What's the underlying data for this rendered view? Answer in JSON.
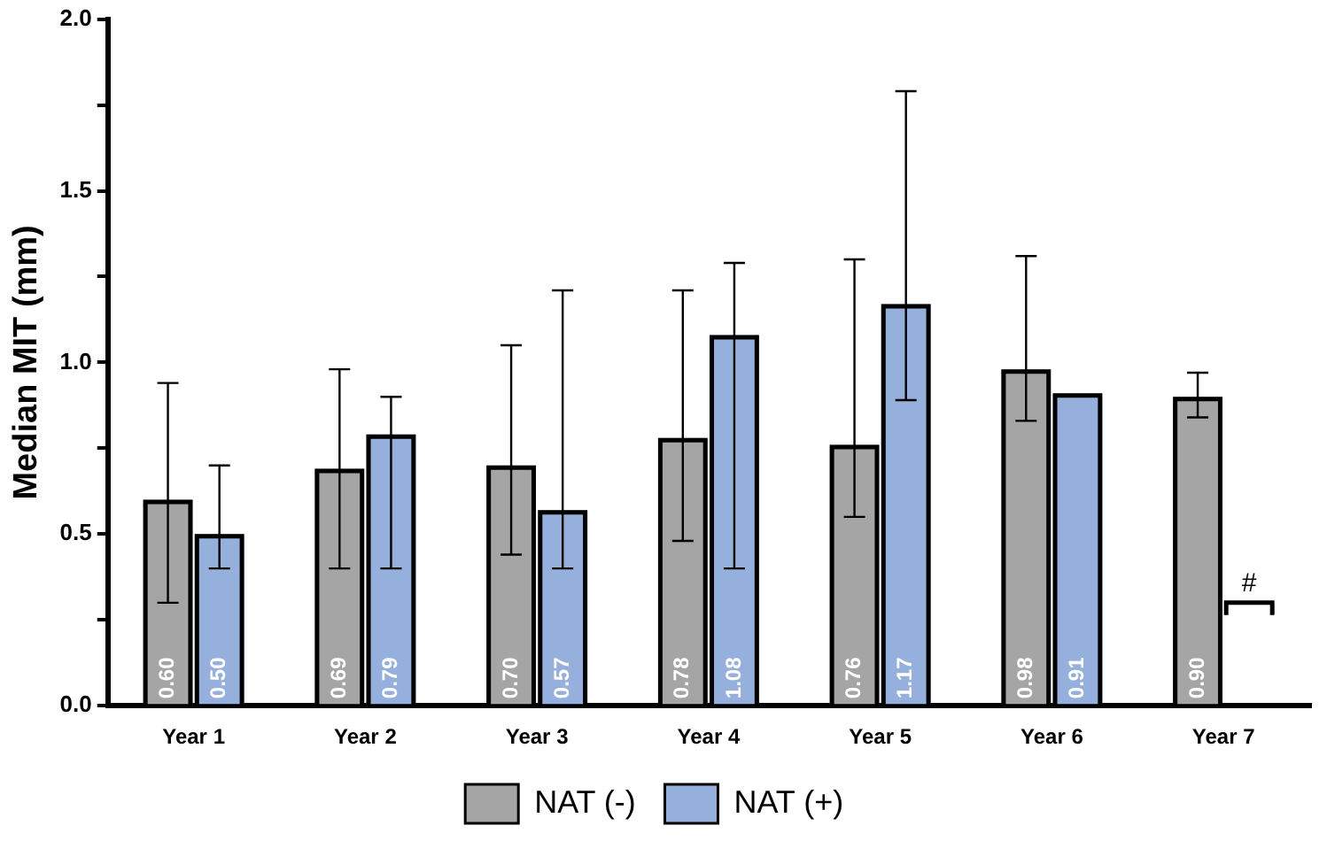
{
  "chart_data": {
    "type": "bar",
    "ylabel": "Median MIT (mm)",
    "categories": [
      "Year 1",
      "Year 2",
      "Year 3",
      "Year 4",
      "Year 5",
      "Year 6",
      "Year 7"
    ],
    "series": [
      {
        "name": "NAT (-)",
        "color": "#a5a5a5",
        "values": [
          0.6,
          0.69,
          0.7,
          0.78,
          0.76,
          0.98,
          0.9
        ],
        "value_labels": [
          "0.60",
          "0.69",
          "0.70",
          "0.78",
          "0.76",
          "0.98",
          "0.90"
        ],
        "errors": [
          [
            0.3,
            0.94
          ],
          [
            0.4,
            0.98
          ],
          [
            0.44,
            1.05
          ],
          [
            0.48,
            1.21
          ],
          [
            0.55,
            1.3
          ],
          [
            0.83,
            1.31
          ],
          [
            0.84,
            0.97
          ]
        ]
      },
      {
        "name": "NAT (+)",
        "color": "#95b0dc",
        "values": [
          0.5,
          0.79,
          0.57,
          1.08,
          1.17,
          0.91,
          null
        ],
        "value_labels": [
          "0.50",
          "0.79",
          "0.57",
          "1.08",
          "1.17",
          "0.91",
          null
        ],
        "errors": [
          [
            0.4,
            0.7
          ],
          [
            0.4,
            0.9
          ],
          [
            0.4,
            1.21
          ],
          [
            0.4,
            1.29
          ],
          [
            0.89,
            1.79
          ],
          null,
          null
        ]
      }
    ],
    "ylim": [
      0,
      2.0
    ],
    "yticks": [
      {
        "value": 0,
        "label": "0.0"
      },
      {
        "value": 0.25,
        "label": null
      },
      {
        "value": 0.5,
        "label": "0.5"
      },
      {
        "value": 0.75,
        "label": null
      },
      {
        "value": 1.0,
        "label": "1.0"
      },
      {
        "value": 1.25,
        "label": null
      },
      {
        "value": 1.5,
        "label": "1.5"
      },
      {
        "value": 1.75,
        "label": null
      },
      {
        "value": 2.0,
        "label": "2.0"
      }
    ],
    "grid": false,
    "legend": "bottom",
    "annotations": [
      {
        "text": "#",
        "x": "Year 7",
        "y": 0.3
      }
    ]
  }
}
